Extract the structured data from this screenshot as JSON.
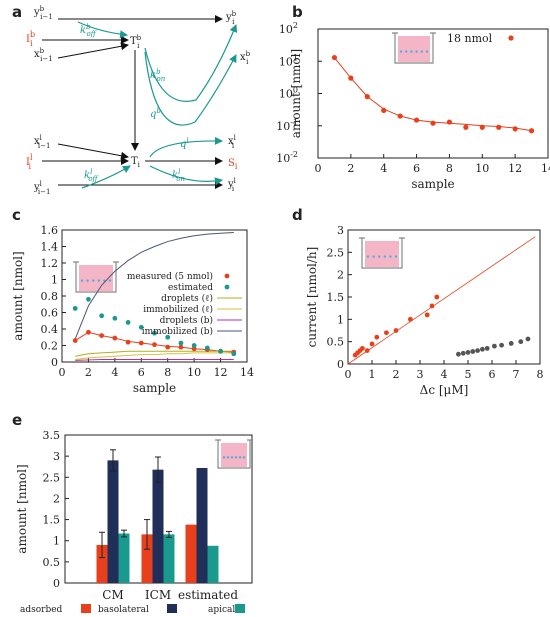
{
  "panels": {
    "a": {
      "letter": "a"
    },
    "b": {
      "letter": "b"
    },
    "c": {
      "letter": "c"
    },
    "d": {
      "letter": "d"
    },
    "e": {
      "letter": "e"
    }
  },
  "colors": {
    "red": "#e8401c",
    "teal": "#1a9a8f",
    "navy": "#1f2f5a",
    "olive": "#b0b022",
    "magenta": "#b62f9a",
    "slate": "#4b557a",
    "gray": "#555555",
    "pink": "#f4b6c6"
  },
  "diagram": {
    "nodes": [
      {
        "id": "yb_prev",
        "text": "y",
        "sup": "b",
        "sub": "i−1"
      },
      {
        "id": "Ib",
        "text": "I",
        "sup": "b",
        "sub": "i"
      },
      {
        "id": "xb_prev",
        "text": "x",
        "sup": "b",
        "sub": "i−1"
      },
      {
        "id": "Tb",
        "text": "T",
        "sup": "b",
        "sub": "i"
      },
      {
        "id": "yb",
        "text": "y",
        "sup": "b",
        "sub": "i"
      },
      {
        "id": "xb",
        "text": "x",
        "sup": "b",
        "sub": "i"
      },
      {
        "id": "xl_prev",
        "text": "x",
        "sup": "l",
        "sub": "i−1"
      },
      {
        "id": "Il",
        "text": "I",
        "sup": "l",
        "sub": "i"
      },
      {
        "id": "yl_prev",
        "text": "y",
        "sup": "l",
        "sub": "i−1"
      },
      {
        "id": "T",
        "text": "T",
        "sup": "",
        "sub": "i"
      },
      {
        "id": "xl",
        "text": "x",
        "sup": "l",
        "sub": "i"
      },
      {
        "id": "S",
        "text": "S",
        "sup": "",
        "sub": "i"
      },
      {
        "id": "yl",
        "text": "y",
        "sup": "l",
        "sub": "i"
      }
    ],
    "rates": [
      {
        "id": "koff_b",
        "text": "k",
        "sup": "b",
        "sub": "off"
      },
      {
        "id": "kon_b",
        "text": "k",
        "sup": "b",
        "sub": "on"
      },
      {
        "id": "q_b",
        "text": "q",
        "sup": "b",
        "sub": ""
      },
      {
        "id": "q_l",
        "text": "q",
        "sup": "l",
        "sub": ""
      },
      {
        "id": "koff_l",
        "text": "k",
        "sup": "l",
        "sub": "off"
      },
      {
        "id": "kon_l",
        "text": "k",
        "sup": "l",
        "sub": "on"
      }
    ]
  },
  "chart_data": [
    {
      "panel": "b",
      "type": "scatter",
      "xlabel": "sample",
      "ylabel": "amount [nmol]",
      "xlim": [
        0,
        14
      ],
      "ylim": [
        0.01,
        100
      ],
      "yscale": "log",
      "xticks": [
        "0",
        "2",
        "4",
        "6",
        "8",
        "10",
        "12",
        "14"
      ],
      "yticks": [
        {
          "base": "10",
          "exp": "-2"
        },
        {
          "base": "10",
          "exp": "-1"
        },
        {
          "base": "10",
          "exp": "0"
        },
        {
          "base": "10",
          "exp": "1"
        },
        {
          "base": "10",
          "exp": "2"
        }
      ],
      "legend": "top-right",
      "series": [
        {
          "name": "18 nmol",
          "style": "points",
          "x": [
            1,
            2,
            3,
            4,
            5,
            6,
            7,
            8,
            9,
            10,
            11,
            12,
            13
          ],
          "y": [
            13,
            3.0,
            0.8,
            0.3,
            0.2,
            0.15,
            0.12,
            0.13,
            0.09,
            0.09,
            0.09,
            0.08,
            0.07
          ]
        },
        {
          "style": "line",
          "x": [
            1,
            2,
            3,
            4,
            5,
            6,
            7,
            8,
            9,
            10,
            11,
            12,
            13
          ],
          "y": [
            13,
            3.0,
            0.8,
            0.33,
            0.2,
            0.15,
            0.13,
            0.12,
            0.11,
            0.1,
            0.095,
            0.085,
            0.07
          ]
        }
      ]
    },
    {
      "panel": "c",
      "type": "line",
      "xlabel": "sample",
      "ylabel": "amount [nmol]",
      "xlim": [
        0,
        14
      ],
      "ylim": [
        0,
        1.6
      ],
      "xticks": [
        "0",
        "2",
        "4",
        "6",
        "8",
        "10",
        "12",
        "14"
      ],
      "yticks": [
        "0",
        "0.2",
        "0.4",
        "0.6",
        "0.8",
        "1",
        "1.2",
        "1.4",
        "1.6"
      ],
      "legend": "center-right",
      "series": [
        {
          "name": "measured (5 nmol)",
          "style": "points",
          "x": [
            1,
            2,
            3,
            4,
            5,
            6,
            7,
            8,
            9,
            10,
            11,
            12,
            13
          ],
          "y": [
            0.26,
            0.36,
            0.32,
            0.29,
            0.24,
            0.23,
            0.21,
            0.18,
            0.18,
            0.16,
            0.15,
            0.13,
            0.12
          ]
        },
        {
          "name": "estimated",
          "style": "points",
          "x": [
            1,
            2,
            3,
            4,
            5,
            6,
            7,
            8,
            9,
            10,
            11,
            12,
            13
          ],
          "y": [
            0.65,
            0.76,
            0.56,
            0.53,
            0.48,
            0.42,
            0.35,
            0.3,
            0.23,
            0.2,
            0.17,
            0.13,
            0.1
          ]
        },
        {
          "name": "",
          "style": "line",
          "x": [
            1,
            2,
            3,
            4,
            5,
            6,
            7,
            8,
            9,
            10,
            11,
            12,
            13
          ],
          "y": [
            0.26,
            0.36,
            0.32,
            0.29,
            0.25,
            0.23,
            0.21,
            0.19,
            0.18,
            0.16,
            0.15,
            0.13,
            0.12
          ]
        },
        {
          "name": "droplets (ℓ)",
          "style": "line",
          "x": [
            1,
            2,
            3,
            4,
            5,
            6,
            7,
            8,
            9,
            10,
            11,
            12,
            13
          ],
          "y": [
            0.07,
            0.1,
            0.11,
            0.12,
            0.13,
            0.13,
            0.13,
            0.13,
            0.13,
            0.13,
            0.13,
            0.13,
            0.13
          ]
        },
        {
          "name": "immobilized (ℓ)",
          "style": "line",
          "x": [
            1,
            2,
            3,
            4,
            5,
            6,
            7,
            8,
            9,
            10,
            11,
            12,
            13
          ],
          "y": [
            0.03,
            0.05,
            0.06,
            0.07,
            0.08,
            0.09,
            0.09,
            0.1,
            0.1,
            0.11,
            0.11,
            0.11,
            0.11
          ]
        },
        {
          "name": "droplets (b)",
          "style": "line",
          "x": [
            1,
            2,
            3,
            4,
            5,
            6,
            7,
            8,
            9,
            10,
            11,
            12,
            13
          ],
          "y": [
            0.02,
            0.025,
            0.03,
            0.03,
            0.03,
            0.03,
            0.03,
            0.03,
            0.03,
            0.03,
            0.03,
            0.03,
            0.03
          ]
        },
        {
          "name": "immobilized (b)",
          "style": "line",
          "x": [
            1,
            2,
            3,
            4,
            5,
            6,
            7,
            8,
            9,
            10,
            11,
            12,
            13
          ],
          "y": [
            0.28,
            0.68,
            0.93,
            1.1,
            1.23,
            1.33,
            1.4,
            1.46,
            1.5,
            1.53,
            1.55,
            1.56,
            1.57
          ]
        }
      ]
    },
    {
      "panel": "d",
      "type": "scatter",
      "xlabel": "Δc [μM]",
      "ylabel": "current [nmol/h]",
      "xlim": [
        0,
        8
      ],
      "ylim": [
        0,
        3
      ],
      "xticks": [
        "0",
        "1",
        "2",
        "3",
        "4",
        "5",
        "6",
        "7",
        "8"
      ],
      "yticks": [
        "0",
        "0.5",
        "1",
        "1.5",
        "2",
        "2.5",
        "3"
      ],
      "series": [
        {
          "style": "points",
          "color": "red",
          "x": [
            0.3,
            0.4,
            0.5,
            0.6,
            0.8,
            1.0,
            1.2,
            1.6,
            2.0,
            2.6,
            3.3,
            3.5,
            3.7
          ],
          "y": [
            0.2,
            0.25,
            0.3,
            0.35,
            0.3,
            0.45,
            0.6,
            0.7,
            0.75,
            1.0,
            1.1,
            1.3,
            1.5
          ]
        },
        {
          "style": "line",
          "color": "red",
          "x": [
            0,
            7.8
          ],
          "y": [
            0,
            2.85
          ]
        },
        {
          "style": "points",
          "color": "gray",
          "x": [
            4.6,
            4.8,
            5.0,
            5.2,
            5.4,
            5.6,
            5.8,
            6.1,
            6.4,
            6.8,
            7.2,
            7.5
          ],
          "y": [
            0.22,
            0.24,
            0.26,
            0.28,
            0.3,
            0.33,
            0.35,
            0.4,
            0.42,
            0.46,
            0.5,
            0.56
          ]
        }
      ]
    },
    {
      "panel": "e",
      "type": "bar",
      "ylabel": "amount [nmol]",
      "ylim": [
        0,
        3.5
      ],
      "yticks": [
        "0",
        "0.5",
        "1",
        "1.5",
        "2",
        "2.5",
        "3",
        "3.5"
      ],
      "categories": [
        "CM",
        "ICM",
        "estimated"
      ],
      "legend": "bottom",
      "series": [
        {
          "name": "adsorbed",
          "color": "red",
          "values": [
            0.9,
            1.15,
            1.38
          ],
          "err": [
            0.3,
            0.35,
            0
          ]
        },
        {
          "name": "basolateral",
          "color": "navy",
          "values": [
            2.9,
            2.68,
            2.72
          ],
          "err": [
            0.25,
            0.3,
            0
          ]
        },
        {
          "name": "apical",
          "color": "teal",
          "values": [
            1.17,
            1.15,
            0.88
          ],
          "err": [
            0.08,
            0.07,
            0
          ]
        }
      ]
    }
  ]
}
